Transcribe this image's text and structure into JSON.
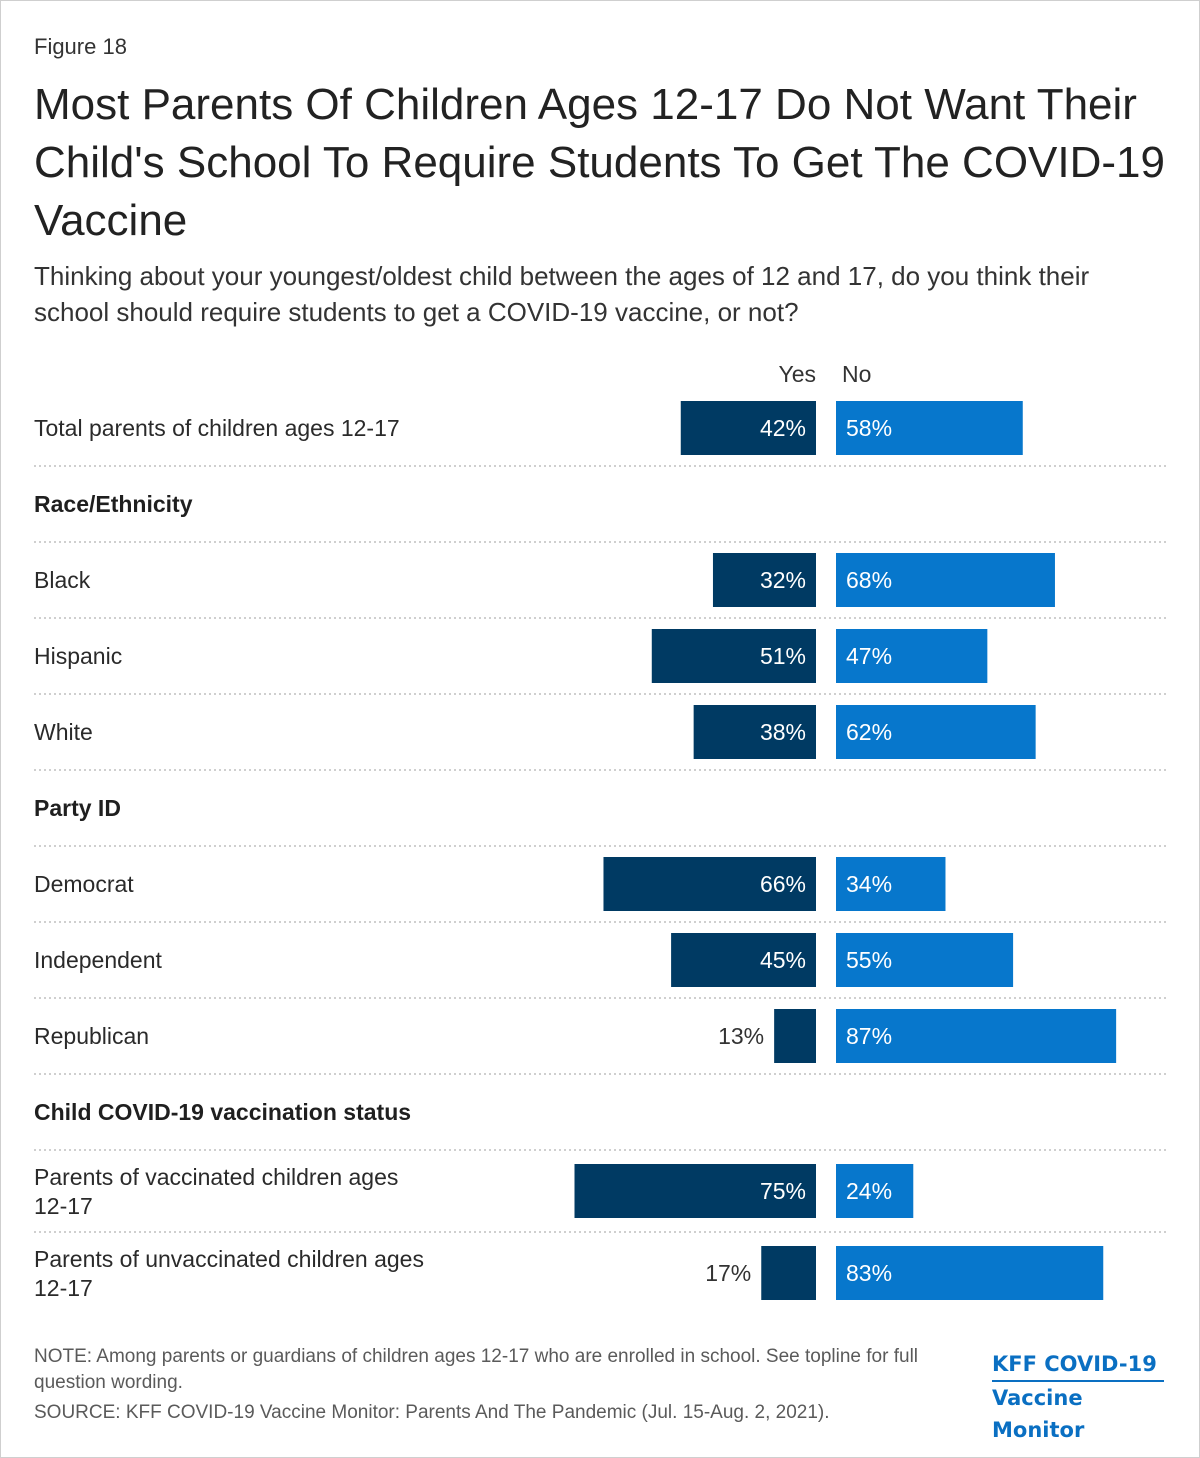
{
  "figure_label": "Figure 18",
  "title": "Most Parents Of Children Ages 12-17 Do Not Want Their Child's School To Require Students To Get The COVID-19 Vaccine",
  "subtitle": "Thinking about your youngest/oldest child between the ages of 12 and 17, do you think their school should require students to get a COVID-19 vaccine, or not?",
  "note": "NOTE: Among parents or guardians of children ages 12-17 who are enrolled in school. See topline for full question wording.",
  "source": "SOURCE: KFF COVID-19 Vaccine Monitor: Parents And The Pandemic (Jul. 15-Aug. 2, 2021).",
  "logo": {
    "line1": "KFF COVID-19",
    "line2": "Vaccine Monitor"
  },
  "colors": {
    "yes": "#003a63",
    "no": "#0777cc",
    "grid": "#bfbfbf"
  },
  "chart_data": {
    "type": "bar",
    "orientation": "horizontal-diverging",
    "series": [
      {
        "name": "Yes",
        "color": "#003a63"
      },
      {
        "name": "No",
        "color": "#0777cc"
      }
    ],
    "rows": [
      {
        "kind": "item",
        "label": "Total parents of children ages 12-17",
        "yes": 42,
        "no": 58
      },
      {
        "kind": "header",
        "label": "Race/Ethnicity"
      },
      {
        "kind": "item",
        "label": "Black",
        "yes": 32,
        "no": 68
      },
      {
        "kind": "item",
        "label": "Hispanic",
        "yes": 51,
        "no": 47
      },
      {
        "kind": "item",
        "label": "White",
        "yes": 38,
        "no": 62
      },
      {
        "kind": "header",
        "label": "Party ID"
      },
      {
        "kind": "item",
        "label": "Democrat",
        "yes": 66,
        "no": 34
      },
      {
        "kind": "item",
        "label": "Independent",
        "yes": 45,
        "no": 55
      },
      {
        "kind": "item",
        "label": "Republican",
        "yes": 13,
        "no": 87
      },
      {
        "kind": "header",
        "label": "Child COVID-19 vaccination status"
      },
      {
        "kind": "item",
        "label": "Parents of vaccinated children ages 12-17",
        "label_lines": [
          "Parents of vaccinated children ages",
          "12-17"
        ],
        "yes": 75,
        "no": 24
      },
      {
        "kind": "item",
        "label": "Parents of unvaccinated children ages 12-17",
        "label_lines": [
          "Parents of unvaccinated children ages",
          "12-17"
        ],
        "yes": 17,
        "no": 83
      }
    ],
    "value_suffix": "%",
    "xlim": [
      0,
      100
    ]
  }
}
